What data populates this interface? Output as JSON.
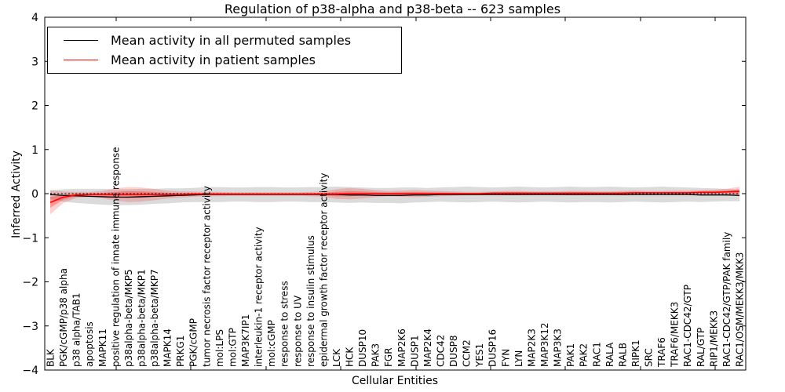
{
  "legend": {
    "items": [
      {
        "label": "Mean activity in all permuted samples",
        "color": "#000000"
      },
      {
        "label": "Mean activity in patient samples",
        "color": "#ff0000"
      }
    ]
  },
  "chart_data": {
    "type": "line",
    "title": "Regulation of p38-alpha and p38-beta -- 623 samples",
    "xlabel": "Cellular Entities",
    "ylabel": "Inferred Activity",
    "ylim": [
      -4,
      4
    ],
    "yticks": [
      4,
      3,
      2,
      1,
      0,
      -1,
      -2,
      -3,
      -4
    ],
    "ytick_labels": [
      "4",
      "3",
      "2",
      "1",
      "0",
      "−1",
      "−2",
      "−3",
      "−4"
    ],
    "grid": false,
    "legend_position": "upper left",
    "zero_line": 0,
    "categories": [
      "BLK",
      "PGK/cGMP/p38 alpha",
      "p38 alpha/TAB1",
      "apoptosis",
      "MAPK11",
      "positive regulation of innate immune response",
      "p38alpha-beta/MKP5",
      "p38alpha-beta/MKP1",
      "p38alpha-beta/MKP7",
      "MAPK14",
      "PRKG1",
      "PGK/cGMP",
      "tumor necrosis factor receptor activity",
      "mol:LPS",
      "mol:GTP",
      "MAP3K7IP1",
      "interleukin-1 receptor activity",
      "mol:cGMP",
      "response to stress",
      "response to UV",
      "response to insulin stimulus",
      "epidermal growth factor receptor activity",
      "LCK",
      "HCK",
      "DUSP10",
      "PAK3",
      "FGR",
      "MAP2K6",
      "DUSP1",
      "MAP2K4",
      "CDC42",
      "DUSP8",
      "CCM2",
      "YES1",
      "DUSP16",
      "FYN",
      "LYN",
      "MAP2K3",
      "MAP3K12",
      "MAP3K3",
      "PAK1",
      "PAK2",
      "RAC1",
      "RALA",
      "RALB",
      "RIPK1",
      "SRC",
      "TRAF6",
      "TRAF6/MEKK3",
      "RAC1-CDC42/GTP",
      "RAL/GTP",
      "RIP1/MEKK3",
      "RAC1-CDC42/GTP/PAK family",
      "RAC1/OSM/MEKK3/MKK3"
    ],
    "series": [
      {
        "name": "Mean activity in all permuted samples",
        "color": "#000000",
        "values": [
          -0.02,
          -0.04,
          -0.05,
          -0.06,
          -0.07,
          -0.08,
          -0.08,
          -0.07,
          -0.06,
          -0.05,
          -0.04,
          -0.03,
          -0.02,
          -0.02,
          -0.02,
          -0.02,
          -0.02,
          -0.02,
          -0.02,
          -0.02,
          -0.02,
          -0.02,
          -0.02,
          -0.03,
          -0.03,
          -0.04,
          -0.04,
          -0.04,
          -0.03,
          -0.03,
          -0.02,
          -0.02,
          -0.02,
          -0.02,
          -0.02,
          -0.02,
          -0.02,
          -0.02,
          -0.02,
          -0.02,
          -0.02,
          -0.02,
          -0.02,
          -0.02,
          -0.02,
          -0.02,
          -0.02,
          -0.02,
          -0.02,
          -0.02,
          -0.03,
          -0.03,
          -0.03,
          -0.04
        ],
        "band_halfwidth": [
          0.1,
          0.14,
          0.16,
          0.17,
          0.18,
          0.18,
          0.18,
          0.18,
          0.17,
          0.17,
          0.16,
          0.16,
          0.17,
          0.17,
          0.16,
          0.16,
          0.17,
          0.17,
          0.16,
          0.16,
          0.17,
          0.17,
          0.18,
          0.18,
          0.17,
          0.17,
          0.17,
          0.18,
          0.17,
          0.16,
          0.16,
          0.17,
          0.18,
          0.17,
          0.16,
          0.17,
          0.18,
          0.17,
          0.16,
          0.17,
          0.18,
          0.17,
          0.17,
          0.18,
          0.17,
          0.16,
          0.17,
          0.18,
          0.17,
          0.16,
          0.16,
          0.15,
          0.14,
          0.13
        ]
      },
      {
        "name": "Mean activity in patient samples",
        "color": "#ff0000",
        "values": [
          -0.2,
          -0.08,
          -0.03,
          -0.02,
          -0.02,
          -0.02,
          -0.02,
          -0.02,
          -0.02,
          -0.02,
          -0.02,
          -0.01,
          -0.01,
          -0.01,
          -0.01,
          -0.01,
          -0.01,
          -0.01,
          -0.01,
          -0.01,
          -0.01,
          -0.01,
          -0.01,
          0.0,
          0.0,
          0.0,
          0.0,
          0.0,
          0.0,
          0.0,
          0.0,
          0.0,
          0.0,
          0.0,
          0.01,
          0.01,
          0.01,
          0.01,
          0.01,
          0.01,
          0.01,
          0.01,
          0.01,
          0.01,
          0.01,
          0.02,
          0.02,
          0.02,
          0.02,
          0.02,
          0.03,
          0.03,
          0.04,
          0.05
        ],
        "band_halfwidth": [
          0.27,
          0.13,
          0.07,
          0.06,
          0.08,
          0.14,
          0.17,
          0.16,
          0.13,
          0.09,
          0.07,
          0.06,
          0.05,
          0.05,
          0.04,
          0.04,
          0.04,
          0.04,
          0.04,
          0.04,
          0.05,
          0.06,
          0.11,
          0.13,
          0.11,
          0.08,
          0.06,
          0.07,
          0.08,
          0.07,
          0.06,
          0.05,
          0.04,
          0.04,
          0.04,
          0.05,
          0.05,
          0.04,
          0.04,
          0.04,
          0.05,
          0.05,
          0.04,
          0.04,
          0.05,
          0.05,
          0.04,
          0.04,
          0.05,
          0.05,
          0.05,
          0.06,
          0.07,
          0.11
        ]
      }
    ]
  }
}
